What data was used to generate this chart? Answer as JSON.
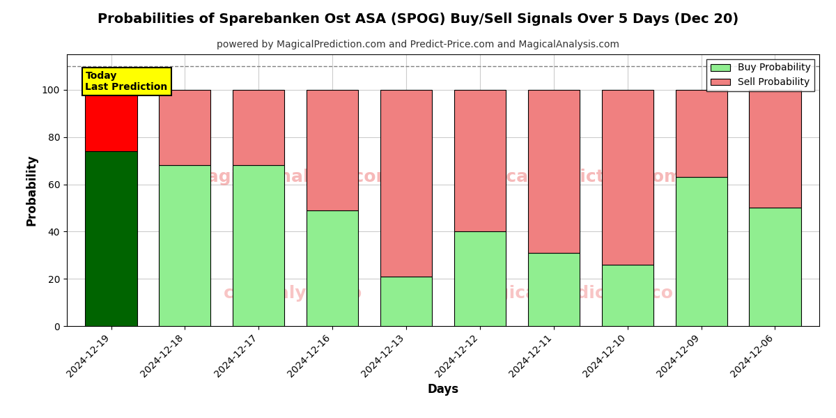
{
  "title": "Probabilities of Sparebanken Ost ASA (SPOG) Buy/Sell Signals Over 5 Days (Dec 20)",
  "subtitle": "powered by MagicalPrediction.com and Predict-Price.com and MagicalAnalysis.com",
  "xlabel": "Days",
  "ylabel": "Probability",
  "categories": [
    "2024-12-19",
    "2024-12-18",
    "2024-12-17",
    "2024-12-16",
    "2024-12-13",
    "2024-12-12",
    "2024-12-11",
    "2024-12-10",
    "2024-12-09",
    "2024-12-06"
  ],
  "buy_values": [
    74,
    68,
    68,
    49,
    21,
    40,
    31,
    26,
    63,
    50
  ],
  "sell_values": [
    26,
    32,
    32,
    51,
    79,
    60,
    69,
    74,
    37,
    50
  ],
  "today_bar_index": 0,
  "buy_color_today": "#006400",
  "sell_color_today": "#FF0000",
  "buy_color_other": "#90EE90",
  "sell_color_other": "#F08080",
  "bar_edge_color": "#000000",
  "bar_width": 0.7,
  "ylim": [
    0,
    115
  ],
  "yticks": [
    0,
    20,
    40,
    60,
    80,
    100
  ],
  "dashed_line_y": 110,
  "legend_buy_label": "Buy Probability",
  "legend_sell_label": "Sell Probability",
  "annotation_text": "Today\nLast Prediction",
  "bg_color": "#ffffff",
  "grid_color": "#cccccc",
  "title_fontsize": 14,
  "subtitle_fontsize": 10,
  "axis_label_fontsize": 12,
  "tick_fontsize": 10
}
